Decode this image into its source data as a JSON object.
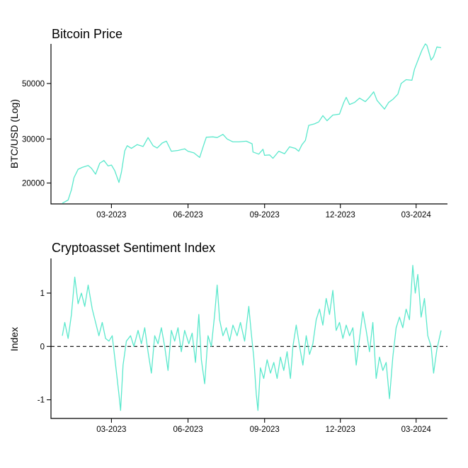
{
  "colors": {
    "line": "#5ae8cc",
    "axis": "#000000",
    "background": "#ffffff"
  },
  "chart_data": [
    {
      "type": "line",
      "title": "Bitcoin Price",
      "ylabel": "BTC/USD (Log)",
      "xlabel": "",
      "yscale": "log",
      "grid": false,
      "xlim": [
        "2023-01-01",
        "2024-03-31"
      ],
      "ylim": [
        16500,
        72000
      ],
      "xticks": [
        {
          "x": "2023-03-01",
          "label": "03-2023"
        },
        {
          "x": "2023-06-01",
          "label": "06-2023"
        },
        {
          "x": "2023-09-01",
          "label": "09-2023"
        },
        {
          "x": "2023-12-01",
          "label": "12-2023"
        },
        {
          "x": "2024-03-01",
          "label": "03-2024"
        }
      ],
      "yticks": [
        {
          "y": 20000,
          "label": "20000"
        },
        {
          "y": 30000,
          "label": "30000"
        },
        {
          "y": 50000,
          "label": "50000"
        }
      ],
      "series": [
        {
          "points": [
            [
              "2023-01-01",
              16600
            ],
            [
              "2023-01-08",
              17100
            ],
            [
              "2023-01-12",
              18800
            ],
            [
              "2023-01-15",
              21000
            ],
            [
              "2023-01-20",
              22700
            ],
            [
              "2023-01-25",
              23100
            ],
            [
              "2023-02-01",
              23500
            ],
            [
              "2023-02-05",
              22900
            ],
            [
              "2023-02-10",
              21700
            ],
            [
              "2023-02-15",
              24000
            ],
            [
              "2023-02-20",
              24600
            ],
            [
              "2023-02-25",
              23400
            ],
            [
              "2023-03-01",
              23600
            ],
            [
              "2023-03-05",
              22400
            ],
            [
              "2023-03-10",
              20100
            ],
            [
              "2023-03-13",
              22100
            ],
            [
              "2023-03-17",
              26900
            ],
            [
              "2023-03-20",
              28200
            ],
            [
              "2023-03-25",
              27500
            ],
            [
              "2023-04-01",
              28500
            ],
            [
              "2023-04-08",
              28000
            ],
            [
              "2023-04-14",
              30400
            ],
            [
              "2023-04-20",
              28200
            ],
            [
              "2023-04-25",
              27600
            ],
            [
              "2023-05-01",
              28900
            ],
            [
              "2023-05-06",
              29400
            ],
            [
              "2023-05-12",
              26800
            ],
            [
              "2023-05-20",
              27000
            ],
            [
              "2023-05-28",
              27400
            ],
            [
              "2023-06-01",
              26800
            ],
            [
              "2023-06-08",
              26400
            ],
            [
              "2023-06-15",
              25300
            ],
            [
              "2023-06-20",
              28500
            ],
            [
              "2023-06-23",
              30500
            ],
            [
              "2023-07-01",
              30600
            ],
            [
              "2023-07-06",
              30400
            ],
            [
              "2023-07-13",
              31300
            ],
            [
              "2023-07-18",
              30000
            ],
            [
              "2023-07-25",
              29200
            ],
            [
              "2023-08-01",
              29200
            ],
            [
              "2023-08-10",
              29400
            ],
            [
              "2023-08-17",
              28700
            ],
            [
              "2023-08-18",
              26600
            ],
            [
              "2023-08-25",
              26100
            ],
            [
              "2023-08-30",
              27300
            ],
            [
              "2023-09-01",
              25800
            ],
            [
              "2023-09-07",
              25900
            ],
            [
              "2023-09-11",
              25100
            ],
            [
              "2023-09-18",
              26800
            ],
            [
              "2023-09-25",
              26200
            ],
            [
              "2023-10-01",
              27900
            ],
            [
              "2023-10-08",
              27500
            ],
            [
              "2023-10-12",
              26800
            ],
            [
              "2023-10-16",
              28500
            ],
            [
              "2023-10-20",
              29600
            ],
            [
              "2023-10-24",
              34000
            ],
            [
              "2023-10-31",
              34500
            ],
            [
              "2023-11-05",
              35100
            ],
            [
              "2023-11-10",
              37200
            ],
            [
              "2023-11-15",
              35500
            ],
            [
              "2023-11-22",
              37400
            ],
            [
              "2023-11-30",
              37700
            ],
            [
              "2023-12-05",
              41900
            ],
            [
              "2023-12-08",
              44000
            ],
            [
              "2023-12-12",
              41200
            ],
            [
              "2023-12-18",
              42000
            ],
            [
              "2023-12-24",
              43700
            ],
            [
              "2023-12-31",
              42300
            ],
            [
              "2024-01-05",
              44100
            ],
            [
              "2024-01-10",
              46300
            ],
            [
              "2024-01-14",
              42800
            ],
            [
              "2024-01-18",
              41300
            ],
            [
              "2024-01-23",
              39500
            ],
            [
              "2024-01-28",
              42000
            ],
            [
              "2024-02-02",
              43200
            ],
            [
              "2024-02-08",
              45300
            ],
            [
              "2024-02-12",
              50000
            ],
            [
              "2024-02-18",
              51800
            ],
            [
              "2024-02-25",
              51500
            ],
            [
              "2024-02-28",
              57000
            ],
            [
              "2024-03-04",
              63000
            ],
            [
              "2024-03-08",
              68000
            ],
            [
              "2024-03-12",
              72000
            ],
            [
              "2024-03-14",
              71000
            ],
            [
              "2024-03-19",
              62000
            ],
            [
              "2024-03-22",
              64000
            ],
            [
              "2024-03-26",
              70000
            ],
            [
              "2024-03-31",
              69500
            ]
          ]
        }
      ]
    },
    {
      "type": "line",
      "title": "Cryptoasset Sentiment Index",
      "ylabel": "Index",
      "xlabel": "",
      "grid": false,
      "reference_line": {
        "y": 0,
        "style": "dashed"
      },
      "xlim": [
        "2023-01-01",
        "2024-03-31"
      ],
      "ylim": [
        -1.35,
        1.65
      ],
      "xticks": [
        {
          "x": "2023-03-01",
          "label": "03-2023"
        },
        {
          "x": "2023-06-01",
          "label": "06-2023"
        },
        {
          "x": "2023-09-01",
          "label": "09-2023"
        },
        {
          "x": "2023-12-01",
          "label": "12-2023"
        },
        {
          "x": "2024-03-01",
          "label": "03-2024"
        }
      ],
      "yticks": [
        {
          "y": -1,
          "label": "-1"
        },
        {
          "y": 0,
          "label": "0"
        },
        {
          "y": 1,
          "label": "1"
        }
      ],
      "series": [
        {
          "points": [
            [
              "2023-01-01",
              0.2
            ],
            [
              "2023-01-04",
              0.45
            ],
            [
              "2023-01-08",
              0.15
            ],
            [
              "2023-01-12",
              0.6
            ],
            [
              "2023-01-16",
              1.3
            ],
            [
              "2023-01-20",
              0.8
            ],
            [
              "2023-01-24",
              1.0
            ],
            [
              "2023-01-28",
              0.75
            ],
            [
              "2023-02-01",
              1.15
            ],
            [
              "2023-02-06",
              0.7
            ],
            [
              "2023-02-10",
              0.45
            ],
            [
              "2023-02-14",
              0.2
            ],
            [
              "2023-02-18",
              0.45
            ],
            [
              "2023-02-22",
              0.15
            ],
            [
              "2023-02-26",
              0.1
            ],
            [
              "2023-03-02",
              0.2
            ],
            [
              "2023-03-06",
              -0.35
            ],
            [
              "2023-03-10",
              -0.9
            ],
            [
              "2023-03-12",
              -1.2
            ],
            [
              "2023-03-15",
              -0.35
            ],
            [
              "2023-03-19",
              0.1
            ],
            [
              "2023-03-24",
              0.2
            ],
            [
              "2023-03-28",
              0.0
            ],
            [
              "2023-04-02",
              0.3
            ],
            [
              "2023-04-06",
              0.05
            ],
            [
              "2023-04-10",
              0.35
            ],
            [
              "2023-04-14",
              -0.1
            ],
            [
              "2023-04-18",
              -0.5
            ],
            [
              "2023-04-22",
              0.2
            ],
            [
              "2023-04-26",
              0.05
            ],
            [
              "2023-04-30",
              0.35
            ],
            [
              "2023-05-04",
              0.0
            ],
            [
              "2023-05-08",
              -0.45
            ],
            [
              "2023-05-12",
              0.3
            ],
            [
              "2023-05-16",
              0.1
            ],
            [
              "2023-05-20",
              0.35
            ],
            [
              "2023-05-24",
              -0.1
            ],
            [
              "2023-05-28",
              0.3
            ],
            [
              "2023-06-02",
              0.05
            ],
            [
              "2023-06-06",
              0.25
            ],
            [
              "2023-06-10",
              -0.3
            ],
            [
              "2023-06-14",
              0.6
            ],
            [
              "2023-06-17",
              -0.25
            ],
            [
              "2023-06-21",
              -0.7
            ],
            [
              "2023-06-25",
              0.2
            ],
            [
              "2023-06-29",
              0.0
            ],
            [
              "2023-07-03",
              0.6
            ],
            [
              "2023-07-06",
              1.15
            ],
            [
              "2023-07-09",
              0.5
            ],
            [
              "2023-07-13",
              0.2
            ],
            [
              "2023-07-17",
              0.35
            ],
            [
              "2023-07-21",
              0.1
            ],
            [
              "2023-07-25",
              0.4
            ],
            [
              "2023-07-30",
              0.2
            ],
            [
              "2023-08-03",
              0.45
            ],
            [
              "2023-08-08",
              0.1
            ],
            [
              "2023-08-13",
              0.75
            ],
            [
              "2023-08-16",
              0.25
            ],
            [
              "2023-08-19",
              -0.2
            ],
            [
              "2023-08-22",
              -0.9
            ],
            [
              "2023-08-24",
              -1.2
            ],
            [
              "2023-08-27",
              -0.4
            ],
            [
              "2023-08-31",
              -0.6
            ],
            [
              "2023-09-04",
              -0.25
            ],
            [
              "2023-09-08",
              -0.5
            ],
            [
              "2023-09-12",
              -0.3
            ],
            [
              "2023-09-16",
              -0.6
            ],
            [
              "2023-09-20",
              -0.2
            ],
            [
              "2023-09-24",
              -0.45
            ],
            [
              "2023-09-28",
              -0.1
            ],
            [
              "2023-10-02",
              -0.6
            ],
            [
              "2023-10-05",
              0.0
            ],
            [
              "2023-10-09",
              0.4
            ],
            [
              "2023-10-13",
              0.0
            ],
            [
              "2023-10-17",
              -0.35
            ],
            [
              "2023-10-21",
              0.2
            ],
            [
              "2023-10-25",
              -0.15
            ],
            [
              "2023-10-29",
              0.05
            ],
            [
              "2023-11-02",
              0.5
            ],
            [
              "2023-11-06",
              0.7
            ],
            [
              "2023-11-10",
              0.4
            ],
            [
              "2023-11-14",
              0.9
            ],
            [
              "2023-11-18",
              0.6
            ],
            [
              "2023-11-22",
              1.05
            ],
            [
              "2023-11-26",
              0.3
            ],
            [
              "2023-11-30",
              0.45
            ],
            [
              "2023-12-04",
              0.15
            ],
            [
              "2023-12-08",
              0.4
            ],
            [
              "2023-12-12",
              0.2
            ],
            [
              "2023-12-16",
              0.35
            ],
            [
              "2023-12-20",
              -0.35
            ],
            [
              "2023-12-24",
              0.15
            ],
            [
              "2023-12-28",
              0.65
            ],
            [
              "2024-01-01",
              0.3
            ],
            [
              "2024-01-05",
              -0.1
            ],
            [
              "2024-01-09",
              0.45
            ],
            [
              "2024-01-13",
              -0.6
            ],
            [
              "2024-01-17",
              -0.2
            ],
            [
              "2024-01-21",
              -0.45
            ],
            [
              "2024-01-25",
              -0.3
            ],
            [
              "2024-01-29",
              -0.98
            ],
            [
              "2024-02-02",
              -0.2
            ],
            [
              "2024-02-06",
              0.35
            ],
            [
              "2024-02-10",
              0.55
            ],
            [
              "2024-02-14",
              0.35
            ],
            [
              "2024-02-18",
              0.7
            ],
            [
              "2024-02-22",
              0.5
            ],
            [
              "2024-02-26",
              1.52
            ],
            [
              "2024-02-29",
              1.0
            ],
            [
              "2024-03-03",
              1.35
            ],
            [
              "2024-03-07",
              0.55
            ],
            [
              "2024-03-11",
              0.9
            ],
            [
              "2024-03-15",
              0.2
            ],
            [
              "2024-03-19",
              0.0
            ],
            [
              "2024-03-22",
              -0.5
            ],
            [
              "2024-03-26",
              -0.05
            ],
            [
              "2024-03-31",
              0.3
            ]
          ]
        }
      ]
    }
  ]
}
